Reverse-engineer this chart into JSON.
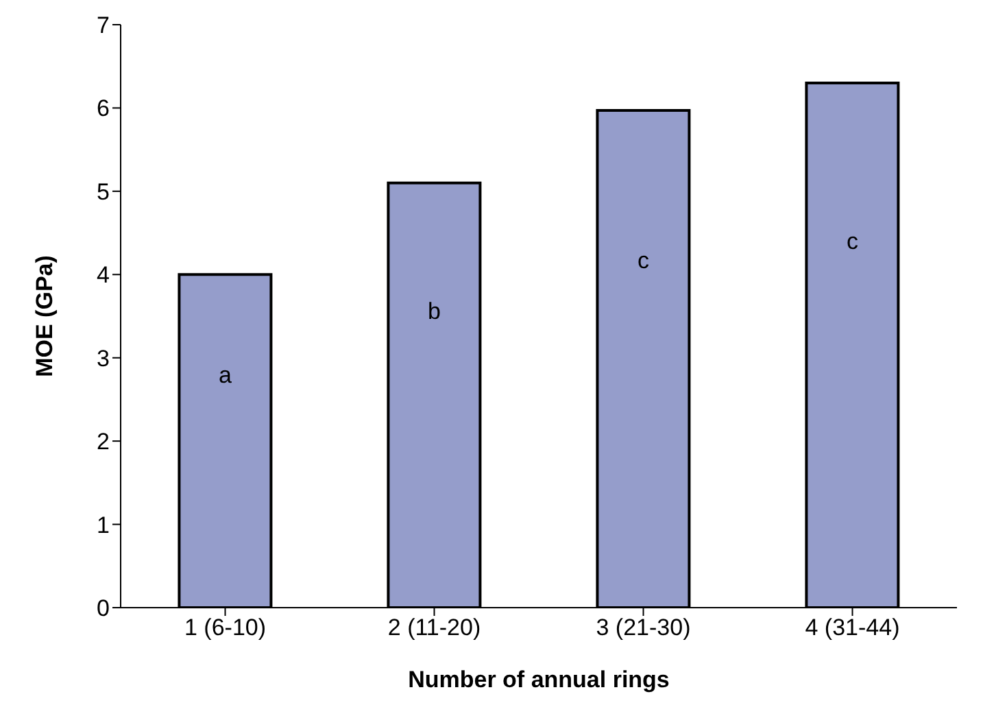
{
  "chart_data": {
    "type": "bar",
    "xlabel": "Number of annual rings",
    "ylabel": "MOE (GPa)",
    "categories": [
      "1 (6-10)",
      "2 (11-20)",
      "3 (21-30)",
      "4 (31-44)"
    ],
    "values": [
      4.0,
      5.1,
      5.97,
      6.3
    ],
    "color": "#959dcb",
    "ylim": [
      0,
      7
    ],
    "yticks": [
      0,
      1,
      2,
      3,
      4,
      5,
      6,
      7
    ],
    "grid": false,
    "legend": false,
    "annotations": [
      "a",
      "b",
      "c",
      "c"
    ]
  }
}
